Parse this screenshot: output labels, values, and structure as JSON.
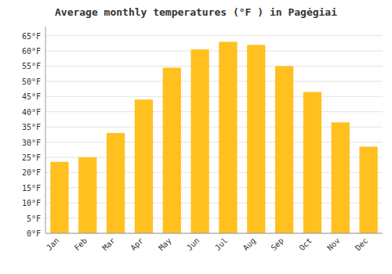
{
  "chart_data": {
    "type": "bar",
    "title": "Average monthly temperatures (°F ) in Pagėgiai",
    "categories": [
      "Jan",
      "Feb",
      "Mar",
      "Apr",
      "May",
      "Jun",
      "Jul",
      "Aug",
      "Sep",
      "Oct",
      "Nov",
      "Dec"
    ],
    "values": [
      23.5,
      25.0,
      33.0,
      44.0,
      54.5,
      60.5,
      63.0,
      62.0,
      55.0,
      46.5,
      36.5,
      28.5
    ],
    "color": "#FFC020",
    "ylim": [
      0,
      68
    ],
    "yticks": [
      {
        "value": 0,
        "label": "0°F"
      },
      {
        "value": 5,
        "label": "5°F"
      },
      {
        "value": 10,
        "label": "10°F"
      },
      {
        "value": 15,
        "label": "15°F"
      },
      {
        "value": 20,
        "label": "20°F"
      },
      {
        "value": 25,
        "label": "25°F"
      },
      {
        "value": 30,
        "label": "30°F"
      },
      {
        "value": 35,
        "label": "35°F"
      },
      {
        "value": 40,
        "label": "40°F"
      },
      {
        "value": 45,
        "label": "45°F"
      },
      {
        "value": 50,
        "label": "50°F"
      },
      {
        "value": 55,
        "label": "55°F"
      },
      {
        "value": 60,
        "label": "60°F"
      },
      {
        "value": 65,
        "label": "65°F"
      }
    ],
    "grid": true
  }
}
